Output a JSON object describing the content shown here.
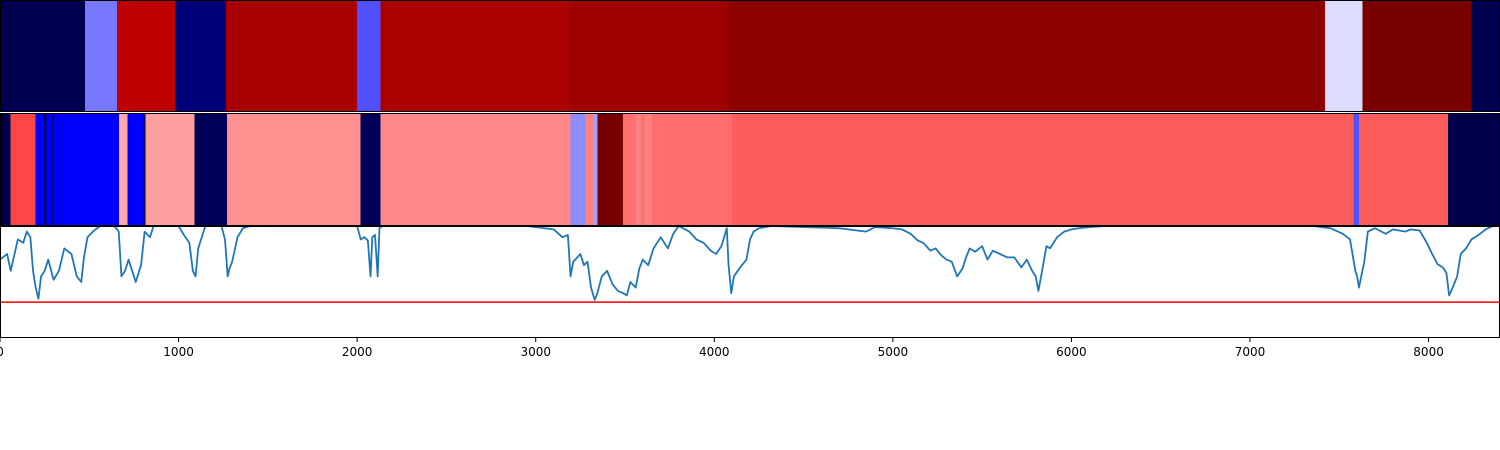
{
  "chart_data": {
    "type": "heatmap",
    "x_range": [
      0,
      8400
    ],
    "x_ticks": [
      0,
      1000,
      2000,
      3000,
      4000,
      5000,
      6000,
      7000,
      8000
    ],
    "tracks": [
      {
        "segments": [
          {
            "start": 0,
            "end": 475,
            "color": "#000050"
          },
          {
            "start": 475,
            "end": 655,
            "color": "#7878ff"
          },
          {
            "start": 655,
            "end": 980,
            "color": "#c00000"
          },
          {
            "start": 980,
            "end": 1265,
            "color": "#000078"
          },
          {
            "start": 1265,
            "end": 2000,
            "color": "#a80000"
          },
          {
            "start": 2000,
            "end": 2130,
            "color": "#5050ff"
          },
          {
            "start": 2130,
            "end": 3185,
            "color": "#ac0000"
          },
          {
            "start": 3185,
            "end": 4080,
            "color": "#9e0000"
          },
          {
            "start": 4080,
            "end": 7420,
            "color": "#8c0000"
          },
          {
            "start": 7420,
            "end": 7630,
            "color": "#dcdcff"
          },
          {
            "start": 7630,
            "end": 8240,
            "color": "#780000"
          },
          {
            "start": 8240,
            "end": 8400,
            "color": "#000050"
          }
        ]
      },
      {
        "segments": [
          {
            "start": 0,
            "end": 60,
            "color": "#00004a"
          },
          {
            "start": 60,
            "end": 200,
            "color": "#ff4646"
          },
          {
            "start": 200,
            "end": 240,
            "color": "#0000ff"
          },
          {
            "start": 240,
            "end": 260,
            "color": "#00005a"
          },
          {
            "start": 260,
            "end": 290,
            "color": "#0000ff"
          },
          {
            "start": 290,
            "end": 300,
            "color": "#00005a"
          },
          {
            "start": 300,
            "end": 665,
            "color": "#0000ff"
          },
          {
            "start": 665,
            "end": 715,
            "color": "#ffaaaa"
          },
          {
            "start": 715,
            "end": 800,
            "color": "#0000ff"
          },
          {
            "start": 800,
            "end": 815,
            "color": "#00005a"
          },
          {
            "start": 815,
            "end": 1090,
            "color": "#ffa0a0"
          },
          {
            "start": 1090,
            "end": 1270,
            "color": "#000058"
          },
          {
            "start": 1270,
            "end": 2020,
            "color": "#ff9090"
          },
          {
            "start": 2020,
            "end": 2130,
            "color": "#000058"
          },
          {
            "start": 2130,
            "end": 3195,
            "color": "#ff8888"
          },
          {
            "start": 3195,
            "end": 3280,
            "color": "#8c8cff"
          },
          {
            "start": 3280,
            "end": 3320,
            "color": "#ff8080"
          },
          {
            "start": 3320,
            "end": 3345,
            "color": "#a0a0ff"
          },
          {
            "start": 3345,
            "end": 3490,
            "color": "#780000"
          },
          {
            "start": 3490,
            "end": 3560,
            "color": "#ff7070"
          },
          {
            "start": 3560,
            "end": 3590,
            "color": "#ff8080"
          },
          {
            "start": 3590,
            "end": 3610,
            "color": "#ff7070"
          },
          {
            "start": 3610,
            "end": 3650,
            "color": "#ff8282"
          },
          {
            "start": 3650,
            "end": 4100,
            "color": "#ff6e6e"
          },
          {
            "start": 4100,
            "end": 7580,
            "color": "#ff5c5c"
          },
          {
            "start": 7580,
            "end": 7610,
            "color": "#5050ff"
          },
          {
            "start": 7610,
            "end": 8110,
            "color": "#ff5c5c"
          },
          {
            "start": 8110,
            "end": 8400,
            "color": "#00004a"
          }
        ]
      }
    ],
    "line_series": {
      "color": "#1f77b4",
      "ylim": [
        0,
        1
      ],
      "points": [
        [
          0,
          0.7
        ],
        [
          40,
          0.75
        ],
        [
          60,
          0.6
        ],
        [
          100,
          0.88
        ],
        [
          130,
          0.85
        ],
        [
          150,
          0.95
        ],
        [
          170,
          0.9
        ],
        [
          185,
          0.6
        ],
        [
          200,
          0.45
        ],
        [
          215,
          0.35
        ],
        [
          230,
          0.55
        ],
        [
          250,
          0.6
        ],
        [
          270,
          0.7
        ],
        [
          300,
          0.52
        ],
        [
          330,
          0.6
        ],
        [
          360,
          0.8
        ],
        [
          400,
          0.75
        ],
        [
          430,
          0.55
        ],
        [
          455,
          0.5
        ],
        [
          470,
          0.72
        ],
        [
          490,
          0.9
        ],
        [
          520,
          0.95
        ],
        [
          560,
          1.0
        ],
        [
          640,
          1.0
        ],
        [
          665,
          0.95
        ],
        [
          680,
          0.55
        ],
        [
          700,
          0.6
        ],
        [
          720,
          0.7
        ],
        [
          760,
          0.5
        ],
        [
          790,
          0.65
        ],
        [
          810,
          0.95
        ],
        [
          840,
          0.9
        ],
        [
          860,
          1.0
        ],
        [
          1000,
          1.0
        ],
        [
          1030,
          0.92
        ],
        [
          1060,
          0.85
        ],
        [
          1080,
          0.6
        ],
        [
          1095,
          0.55
        ],
        [
          1110,
          0.8
        ],
        [
          1150,
          1.0
        ],
        [
          1240,
          1.0
        ],
        [
          1260,
          0.88
        ],
        [
          1275,
          0.55
        ],
        [
          1285,
          0.62
        ],
        [
          1300,
          0.68
        ],
        [
          1330,
          0.9
        ],
        [
          1360,
          0.98
        ],
        [
          1400,
          1.0
        ],
        [
          2000,
          1.0
        ],
        [
          2020,
          0.88
        ],
        [
          2040,
          0.9
        ],
        [
          2060,
          0.87
        ],
        [
          2075,
          0.55
        ],
        [
          2085,
          0.9
        ],
        [
          2100,
          0.92
        ],
        [
          2115,
          0.55
        ],
        [
          2125,
          0.98
        ],
        [
          2140,
          1.0
        ],
        [
          2950,
          1.0
        ],
        [
          3050,
          0.98
        ],
        [
          3100,
          0.97
        ],
        [
          3150,
          0.9
        ],
        [
          3180,
          0.92
        ],
        [
          3195,
          0.55
        ],
        [
          3210,
          0.68
        ],
        [
          3250,
          0.75
        ],
        [
          3270,
          0.65
        ],
        [
          3290,
          0.68
        ],
        [
          3310,
          0.45
        ],
        [
          3330,
          0.34
        ],
        [
          3345,
          0.4
        ],
        [
          3370,
          0.55
        ],
        [
          3400,
          0.6
        ],
        [
          3430,
          0.48
        ],
        [
          3460,
          0.42
        ],
        [
          3490,
          0.4
        ],
        [
          3510,
          0.38
        ],
        [
          3530,
          0.5
        ],
        [
          3560,
          0.45
        ],
        [
          3580,
          0.62
        ],
        [
          3600,
          0.7
        ],
        [
          3630,
          0.65
        ],
        [
          3660,
          0.8
        ],
        [
          3700,
          0.9
        ],
        [
          3740,
          0.8
        ],
        [
          3770,
          0.93
        ],
        [
          3800,
          1.0
        ],
        [
          3860,
          0.95
        ],
        [
          3900,
          0.88
        ],
        [
          3940,
          0.85
        ],
        [
          3980,
          0.78
        ],
        [
          4010,
          0.75
        ],
        [
          4040,
          0.82
        ],
        [
          4070,
          0.98
        ],
        [
          4080,
          0.65
        ],
        [
          4095,
          0.4
        ],
        [
          4110,
          0.55
        ],
        [
          4140,
          0.62
        ],
        [
          4180,
          0.7
        ],
        [
          4200,
          0.88
        ],
        [
          4220,
          0.95
        ],
        [
          4250,
          0.98
        ],
        [
          4320,
          1.0
        ],
        [
          4700,
          0.98
        ],
        [
          4850,
          0.95
        ],
        [
          4900,
          0.99
        ],
        [
          5000,
          0.98
        ],
        [
          5050,
          0.97
        ],
        [
          5100,
          0.93
        ],
        [
          5140,
          0.87
        ],
        [
          5170,
          0.85
        ],
        [
          5210,
          0.78
        ],
        [
          5240,
          0.8
        ],
        [
          5270,
          0.74
        ],
        [
          5300,
          0.7
        ],
        [
          5330,
          0.68
        ],
        [
          5360,
          0.55
        ],
        [
          5390,
          0.62
        ],
        [
          5410,
          0.72
        ],
        [
          5430,
          0.8
        ],
        [
          5460,
          0.77
        ],
        [
          5500,
          0.82
        ],
        [
          5530,
          0.7
        ],
        [
          5560,
          0.78
        ],
        [
          5600,
          0.75
        ],
        [
          5640,
          0.72
        ],
        [
          5680,
          0.72
        ],
        [
          5720,
          0.63
        ],
        [
          5750,
          0.7
        ],
        [
          5780,
          0.6
        ],
        [
          5800,
          0.55
        ],
        [
          5815,
          0.42
        ],
        [
          5830,
          0.55
        ],
        [
          5860,
          0.82
        ],
        [
          5880,
          0.8
        ],
        [
          5920,
          0.9
        ],
        [
          5960,
          0.95
        ],
        [
          6000,
          0.97
        ],
        [
          6040,
          0.98
        ],
        [
          6100,
          0.99
        ],
        [
          6200,
          1.0
        ],
        [
          7350,
          1.0
        ],
        [
          7450,
          0.98
        ],
        [
          7520,
          0.93
        ],
        [
          7560,
          0.88
        ],
        [
          7590,
          0.6
        ],
        [
          7600,
          0.55
        ],
        [
          7610,
          0.45
        ],
        [
          7640,
          0.68
        ],
        [
          7660,
          0.95
        ],
        [
          7700,
          0.98
        ],
        [
          7760,
          0.93
        ],
        [
          7800,
          0.97
        ],
        [
          7870,
          0.95
        ],
        [
          7900,
          0.97
        ],
        [
          7950,
          0.96
        ],
        [
          7990,
          0.85
        ],
        [
          8020,
          0.75
        ],
        [
          8050,
          0.66
        ],
        [
          8080,
          0.63
        ],
        [
          8100,
          0.58
        ],
        [
          8115,
          0.38
        ],
        [
          8135,
          0.45
        ],
        [
          8160,
          0.55
        ],
        [
          8180,
          0.75
        ],
        [
          8210,
          0.8
        ],
        [
          8240,
          0.88
        ],
        [
          8280,
          0.92
        ],
        [
          8320,
          0.97
        ],
        [
          8360,
          1.0
        ],
        [
          8400,
          1.0
        ]
      ]
    },
    "threshold": {
      "value": 0.32,
      "color": "#ff0000"
    }
  }
}
